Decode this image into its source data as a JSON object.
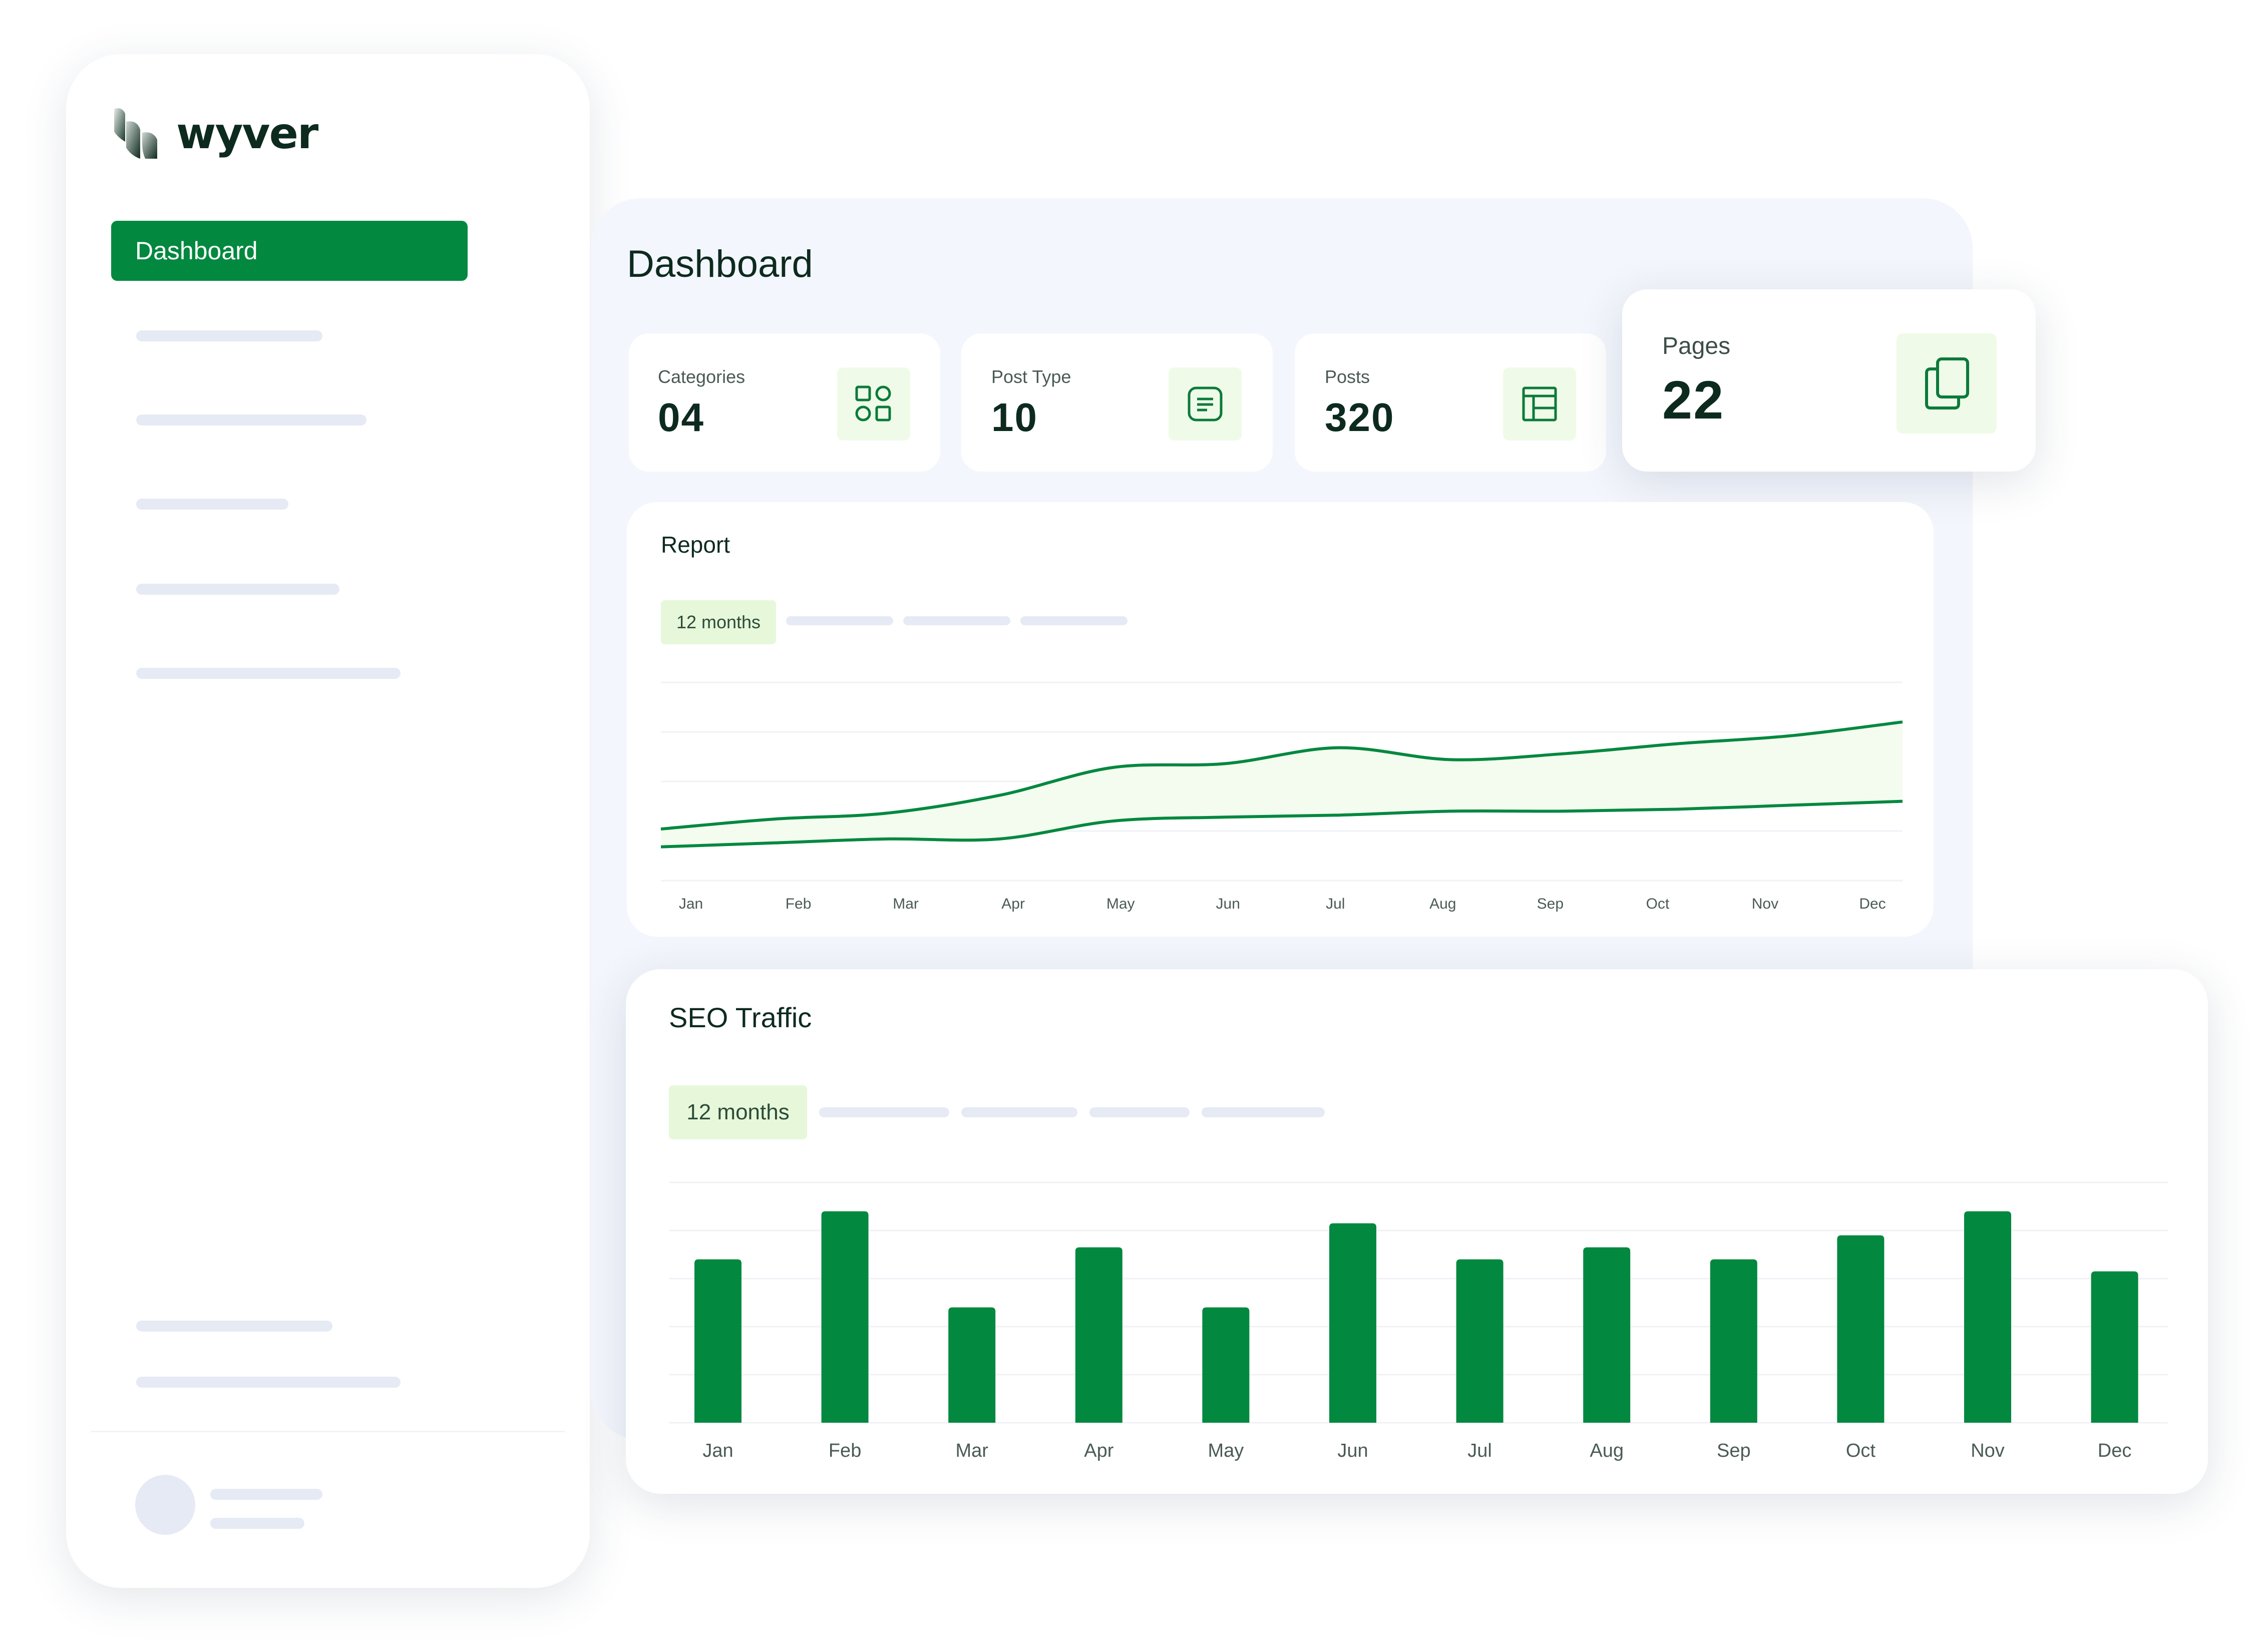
{
  "app": {
    "brand": "wyver"
  },
  "sidebar": {
    "active_item": "Dashboard"
  },
  "main": {
    "title": "Dashboard"
  },
  "stats": [
    {
      "label": "Categories",
      "value": "04",
      "icon": "grid-icon"
    },
    {
      "label": "Post Type",
      "value": "10",
      "icon": "document-icon"
    },
    {
      "label": "Posts",
      "value": "320",
      "icon": "table-icon"
    }
  ],
  "pages_card": {
    "label": "Pages",
    "value": "22",
    "icon": "copy-icon"
  },
  "colors": {
    "accent": "#02883f",
    "chip": "#e6f8d9",
    "placeholder": "#e6eaf4"
  },
  "report": {
    "title": "Report",
    "chip": "12 months"
  },
  "seo": {
    "title": "SEO Traffic",
    "chip": "12 months"
  },
  "chart_data": [
    {
      "type": "line",
      "title": "Report",
      "categories": [
        "Jan",
        "Feb",
        "Mar",
        "Apr",
        "May",
        "Jun",
        "Jul",
        "Aug",
        "Sep",
        "Oct",
        "Nov",
        "Dec"
      ],
      "series": [
        {
          "values": [
            26,
            31,
            34,
            43,
            57,
            59,
            67,
            61,
            64,
            69,
            73,
            80
          ]
        },
        {
          "values": [
            17,
            19,
            21,
            21,
            30,
            32,
            33,
            35,
            35,
            36,
            38,
            40
          ]
        }
      ],
      "ylim": [
        0,
        100
      ],
      "grid": true
    },
    {
      "type": "bar",
      "title": "SEO Traffic",
      "categories": [
        "Jan",
        "Feb",
        "Mar",
        "Apr",
        "May",
        "Jun",
        "Jul",
        "Aug",
        "Sep",
        "Oct",
        "Nov",
        "Dec"
      ],
      "values": [
        68,
        88,
        48,
        73,
        48,
        83,
        68,
        73,
        68,
        78,
        88,
        63
      ],
      "ylim": [
        0,
        100
      ],
      "grid": true
    }
  ]
}
